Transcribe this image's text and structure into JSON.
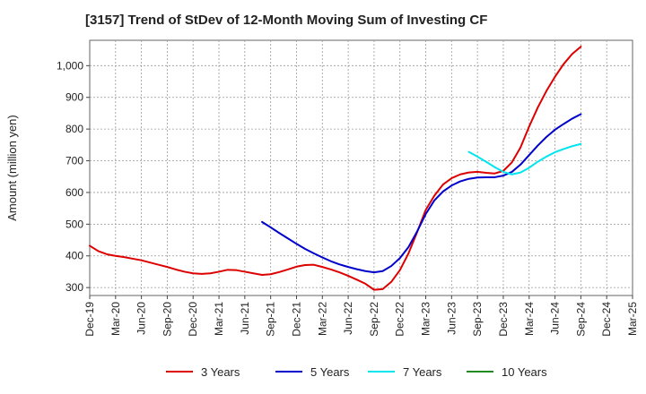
{
  "chart_data": {
    "type": "line",
    "title": "[3157]  Trend of StDev of 12-Month Moving Sum of Investing CF",
    "xlabel": "",
    "ylabel": "Amount (million yen)",
    "ylim": [
      275,
      1080
    ],
    "yticks": [
      300,
      400,
      500,
      600,
      700,
      800,
      900,
      1000
    ],
    "ytick_labels": [
      "300",
      "400",
      "500",
      "600",
      "700",
      "800",
      "900",
      "1,000"
    ],
    "x_start": "Dec-19",
    "x_end": "Mar-25",
    "xtick_labels": [
      "Dec-19",
      "Mar-20",
      "Jun-20",
      "Sep-20",
      "Dec-20",
      "Mar-21",
      "Jun-21",
      "Sep-21",
      "Dec-21",
      "Mar-22",
      "Jun-22",
      "Sep-22",
      "Dec-22",
      "Mar-23",
      "Jun-23",
      "Sep-23",
      "Dec-23",
      "Mar-24",
      "Jun-24",
      "Sep-24",
      "Dec-24",
      "Mar-25"
    ],
    "grid": true,
    "legend_position": "bottom",
    "series": [
      {
        "name": "3 Years",
        "color": "#dd0000",
        "points": [
          [
            "Dec-19",
            432
          ],
          [
            "Jan-20",
            415
          ],
          [
            "Feb-20",
            405
          ],
          [
            "Mar-20",
            400
          ],
          [
            "Apr-20",
            396
          ],
          [
            "May-20",
            391
          ],
          [
            "Jun-20",
            386
          ],
          [
            "Jul-20",
            379
          ],
          [
            "Aug-20",
            372
          ],
          [
            "Sep-20",
            365
          ],
          [
            "Oct-20",
            357
          ],
          [
            "Nov-20",
            350
          ],
          [
            "Dec-20",
            345
          ],
          [
            "Jan-21",
            343
          ],
          [
            "Feb-21",
            345
          ],
          [
            "Mar-21",
            350
          ],
          [
            "Apr-21",
            356
          ],
          [
            "May-21",
            355
          ],
          [
            "Jun-21",
            350
          ],
          [
            "Jul-21",
            345
          ],
          [
            "Aug-21",
            340
          ],
          [
            "Sep-21",
            342
          ],
          [
            "Oct-21",
            349
          ],
          [
            "Nov-21",
            357
          ],
          [
            "Dec-21",
            366
          ],
          [
            "Jan-22",
            371
          ],
          [
            "Feb-22",
            372
          ],
          [
            "Mar-22",
            365
          ],
          [
            "Apr-22",
            357
          ],
          [
            "May-22",
            348
          ],
          [
            "Jun-22",
            337
          ],
          [
            "Jul-22",
            325
          ],
          [
            "Aug-22",
            312
          ],
          [
            "Sep-22",
            293
          ],
          [
            "Oct-22",
            295
          ],
          [
            "Nov-22",
            318
          ],
          [
            "Dec-22",
            355
          ],
          [
            "Jan-23",
            408
          ],
          [
            "Feb-23",
            475
          ],
          [
            "Mar-23",
            545
          ],
          [
            "Apr-23",
            590
          ],
          [
            "May-23",
            625
          ],
          [
            "Jun-23",
            645
          ],
          [
            "Jul-23",
            657
          ],
          [
            "Aug-23",
            663
          ],
          [
            "Sep-23",
            665
          ],
          [
            "Oct-23",
            662
          ],
          [
            "Nov-23",
            660
          ],
          [
            "Dec-23",
            668
          ],
          [
            "Jan-24",
            695
          ],
          [
            "Feb-24",
            742
          ],
          [
            "Mar-24",
            808
          ],
          [
            "Apr-24",
            868
          ],
          [
            "May-24",
            920
          ],
          [
            "Jun-24",
            965
          ],
          [
            "Jul-24",
            1005
          ],
          [
            "Aug-24",
            1037
          ],
          [
            "Sep-24",
            1060
          ]
        ]
      },
      {
        "name": "5 Years",
        "color": "#0000cc",
        "points": [
          [
            "Aug-21",
            507
          ],
          [
            "Sep-21",
            490
          ],
          [
            "Oct-21",
            472
          ],
          [
            "Nov-21",
            455
          ],
          [
            "Dec-21",
            438
          ],
          [
            "Jan-22",
            422
          ],
          [
            "Feb-22",
            408
          ],
          [
            "Mar-22",
            395
          ],
          [
            "Apr-22",
            383
          ],
          [
            "May-22",
            373
          ],
          [
            "Jun-22",
            365
          ],
          [
            "Jul-22",
            358
          ],
          [
            "Aug-22",
            352
          ],
          [
            "Sep-22",
            348
          ],
          [
            "Oct-22",
            352
          ],
          [
            "Nov-22",
            368
          ],
          [
            "Dec-22",
            393
          ],
          [
            "Jan-23",
            428
          ],
          [
            "Feb-23",
            477
          ],
          [
            "Mar-23",
            532
          ],
          [
            "Apr-23",
            575
          ],
          [
            "May-23",
            603
          ],
          [
            "Jun-23",
            622
          ],
          [
            "Jul-23",
            635
          ],
          [
            "Aug-23",
            643
          ],
          [
            "Sep-23",
            647
          ],
          [
            "Oct-23",
            648
          ],
          [
            "Nov-23",
            648
          ],
          [
            "Dec-23",
            653
          ],
          [
            "Jan-24",
            665
          ],
          [
            "Feb-24",
            688
          ],
          [
            "Mar-24",
            718
          ],
          [
            "Apr-24",
            748
          ],
          [
            "May-24",
            775
          ],
          [
            "Jun-24",
            798
          ],
          [
            "Jul-24",
            816
          ],
          [
            "Aug-24",
            833
          ],
          [
            "Sep-24",
            847
          ]
        ]
      },
      {
        "name": "7 Years",
        "color": "#00e5ee",
        "points": [
          [
            "Aug-23",
            728
          ],
          [
            "Sep-23",
            713
          ],
          [
            "Oct-23",
            697
          ],
          [
            "Nov-23",
            680
          ],
          [
            "Dec-23",
            665
          ],
          [
            "Jan-24",
            657
          ],
          [
            "Feb-24",
            663
          ],
          [
            "Mar-24",
            678
          ],
          [
            "Apr-24",
            697
          ],
          [
            "May-24",
            713
          ],
          [
            "Jun-24",
            727
          ],
          [
            "Jul-24",
            737
          ],
          [
            "Aug-24",
            746
          ],
          [
            "Sep-24",
            753
          ]
        ]
      },
      {
        "name": "10 Years",
        "color": "#228b22",
        "points": []
      }
    ]
  }
}
